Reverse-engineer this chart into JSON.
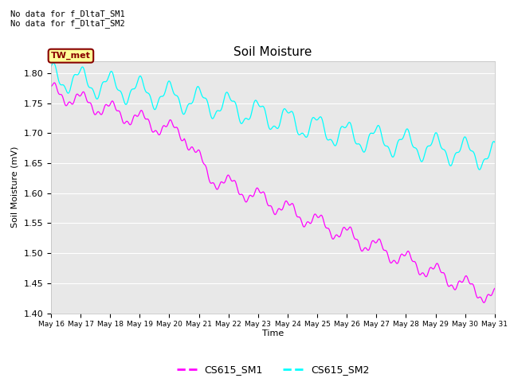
{
  "title": "Soil Moisture",
  "ylabel": "Soil Moisture (mV)",
  "xlabel": "Time",
  "ylim": [
    1.4,
    1.82
  ],
  "yticks": [
    1.4,
    1.45,
    1.5,
    1.55,
    1.6,
    1.65,
    1.7,
    1.75,
    1.8
  ],
  "note_line1": "No data for f_DltaT_SM1",
  "note_line2": "No data for f_DltaT_SM2",
  "legend_label1": "CS615_SM1",
  "legend_label2": "CS615_SM2",
  "color_sm1": "#ff00ff",
  "color_sm2": "#00ffff",
  "tw_met_label": "TW_met",
  "tw_met_bg": "#ffff99",
  "tw_met_border": "#880000",
  "plot_bg": "#e8e8e8",
  "x_start_day": 16,
  "x_end_day": 31,
  "x_tick_days": [
    16,
    17,
    18,
    19,
    20,
    21,
    22,
    23,
    24,
    25,
    26,
    27,
    28,
    29,
    30,
    31
  ]
}
